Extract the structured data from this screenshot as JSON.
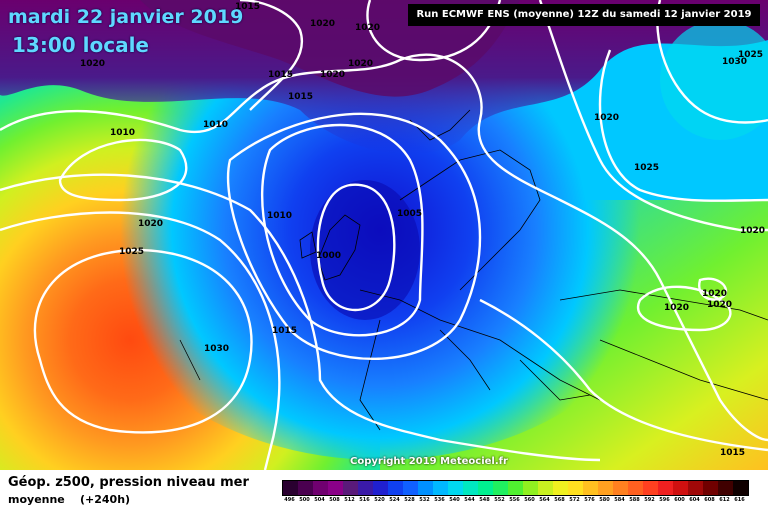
{
  "header": {
    "date": "mardi 22 janvier 2019",
    "time": "13:00 locale",
    "run": "Run ECMWF ENS (moyenne) 12Z du samedi 12 janvier 2019"
  },
  "copyright": "Copyright 2019 Meteociel.fr",
  "footer": {
    "title": "Géop. z500, pression niveau mer",
    "subtitle": "moyenne",
    "forecast_hour": "(+240h)"
  },
  "scale": {
    "labels": [
      "496",
      "500",
      "504",
      "508",
      "512",
      "516",
      "520",
      "524",
      "528",
      "532",
      "536",
      "540",
      "544",
      "548",
      "552",
      "556",
      "560",
      "564",
      "568",
      "572",
      "576",
      "580",
      "584",
      "588",
      "592",
      "596",
      "600",
      "604",
      "608",
      "612",
      "616"
    ],
    "colors": [
      "#2a0030",
      "#4a0050",
      "#700070",
      "#8a0088",
      "#5a1a7a",
      "#3a1aa8",
      "#2020d0",
      "#1040f0",
      "#1060ff",
      "#0090ff",
      "#00b8ff",
      "#00d8f0",
      "#00e8c0",
      "#00f090",
      "#20f060",
      "#50f030",
      "#90f020",
      "#c8f020",
      "#f0f020",
      "#ffe020",
      "#ffc020",
      "#ffa020",
      "#ff8020",
      "#ff6020",
      "#ff4020",
      "#f02020",
      "#d01010",
      "#a00808",
      "#700000",
      "#400000",
      "#100000"
    ]
  },
  "isobars": [
    {
      "label": "1015",
      "row": "top"
    },
    {
      "label": "1020",
      "row": "top"
    },
    {
      "label": "1020",
      "row": "top"
    },
    {
      "label": "1020",
      "row": "upper"
    },
    {
      "label": "1015",
      "row": "upper"
    },
    {
      "label": "1020",
      "row": "upper"
    },
    {
      "label": "1020",
      "row": "upper"
    },
    {
      "label": "1015",
      "row": "upper"
    },
    {
      "label": "1010",
      "row": "upper"
    },
    {
      "label": "1010",
      "row": "upper"
    },
    {
      "label": "1020",
      "row": "upper"
    },
    {
      "label": "1025",
      "row": "upper"
    },
    {
      "label": "1030",
      "row": "upper"
    },
    {
      "label": "1025",
      "row": "middle"
    },
    {
      "label": "1005",
      "row": "middle"
    },
    {
      "label": "1010",
      "row": "middle"
    },
    {
      "label": "1020",
      "row": "middle"
    },
    {
      "label": "1000",
      "row": "middle"
    },
    {
      "label": "1025",
      "row": "middle"
    },
    {
      "label": "1020",
      "row": "middle"
    },
    {
      "label": "1020",
      "row": "middle"
    },
    {
      "label": "1020",
      "row": "lower"
    },
    {
      "label": "1020",
      "row": "lower"
    },
    {
      "label": "1015",
      "row": "lower"
    },
    {
      "label": "1030",
      "row": "lower"
    },
    {
      "label": "1015",
      "row": "lower"
    }
  ]
}
